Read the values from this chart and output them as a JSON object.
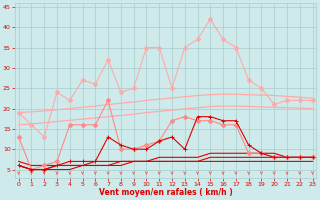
{
  "x": [
    0,
    1,
    2,
    3,
    4,
    5,
    6,
    7,
    8,
    9,
    10,
    11,
    12,
    13,
    14,
    15,
    16,
    17,
    18,
    19,
    20,
    21,
    22,
    23
  ],
  "line_top": [
    19,
    16,
    13,
    24,
    22,
    27,
    26,
    32,
    24,
    25,
    35,
    35,
    25,
    35,
    37,
    42,
    37,
    35,
    27,
    25,
    21,
    22,
    22,
    22
  ],
  "line_mid_pink": [
    13,
    5,
    6,
    7,
    16,
    16,
    16,
    22,
    10,
    10,
    11,
    12,
    17,
    18,
    17,
    17,
    16,
    16,
    9,
    9,
    8,
    8,
    8,
    8
  ],
  "line_trend_upper": [
    19,
    19.2,
    19.4,
    19.7,
    20.0,
    20.3,
    20.6,
    21.0,
    21.3,
    21.6,
    22.0,
    22.3,
    22.6,
    22.9,
    23.2,
    23.4,
    23.5,
    23.5,
    23.4,
    23.3,
    23.2,
    23.0,
    22.8,
    22.5
  ],
  "line_trend_lower": [
    16,
    16.2,
    16.5,
    16.8,
    17.1,
    17.4,
    17.7,
    18.0,
    18.3,
    18.6,
    19.0,
    19.3,
    19.6,
    19.9,
    20.2,
    20.5,
    20.6,
    20.6,
    20.5,
    20.4,
    20.3,
    20.2,
    20.1,
    20.0
  ],
  "line_dark_markers": [
    6,
    5,
    5,
    6,
    7,
    7,
    7,
    13,
    11,
    10,
    10,
    12,
    13,
    10,
    18,
    18,
    17,
    17,
    11,
    9,
    8,
    8,
    8,
    8
  ],
  "line_dark_flat1": [
    6,
    5,
    5,
    6,
    6,
    6,
    7,
    7,
    7,
    7,
    7,
    8,
    8,
    8,
    8,
    9,
    9,
    9,
    9,
    9,
    9,
    8,
    8,
    8
  ],
  "line_dark_flat2": [
    6,
    5,
    5,
    5,
    5,
    6,
    6,
    6,
    6,
    7,
    7,
    7,
    7,
    7,
    7,
    8,
    8,
    8,
    8,
    8,
    8,
    8,
    8,
    8
  ],
  "line_dark_flat3": [
    7,
    6,
    6,
    6,
    6,
    6,
    6,
    6,
    7,
    7,
    7,
    7,
    7,
    7,
    7,
    7,
    7,
    7,
    7,
    7,
    7,
    7,
    7,
    7
  ],
  "ylim": [
    3,
    46
  ],
  "xlim": [
    -0.3,
    23.3
  ],
  "yticks": [
    5,
    10,
    15,
    20,
    25,
    30,
    35,
    40,
    45
  ],
  "xticks": [
    0,
    1,
    2,
    3,
    4,
    5,
    6,
    7,
    8,
    9,
    10,
    11,
    12,
    13,
    14,
    15,
    16,
    17,
    18,
    19,
    20,
    21,
    22,
    23
  ],
  "xlabel": "Vent moyen/en rafales ( km/h )",
  "bg_color": "#ceeaea",
  "grid_color": "#aacccc",
  "color_light_pink": "#ffaaaa",
  "color_med_pink": "#ff8888",
  "color_dark_red": "#dd0000",
  "color_arrow": "#ee6666"
}
